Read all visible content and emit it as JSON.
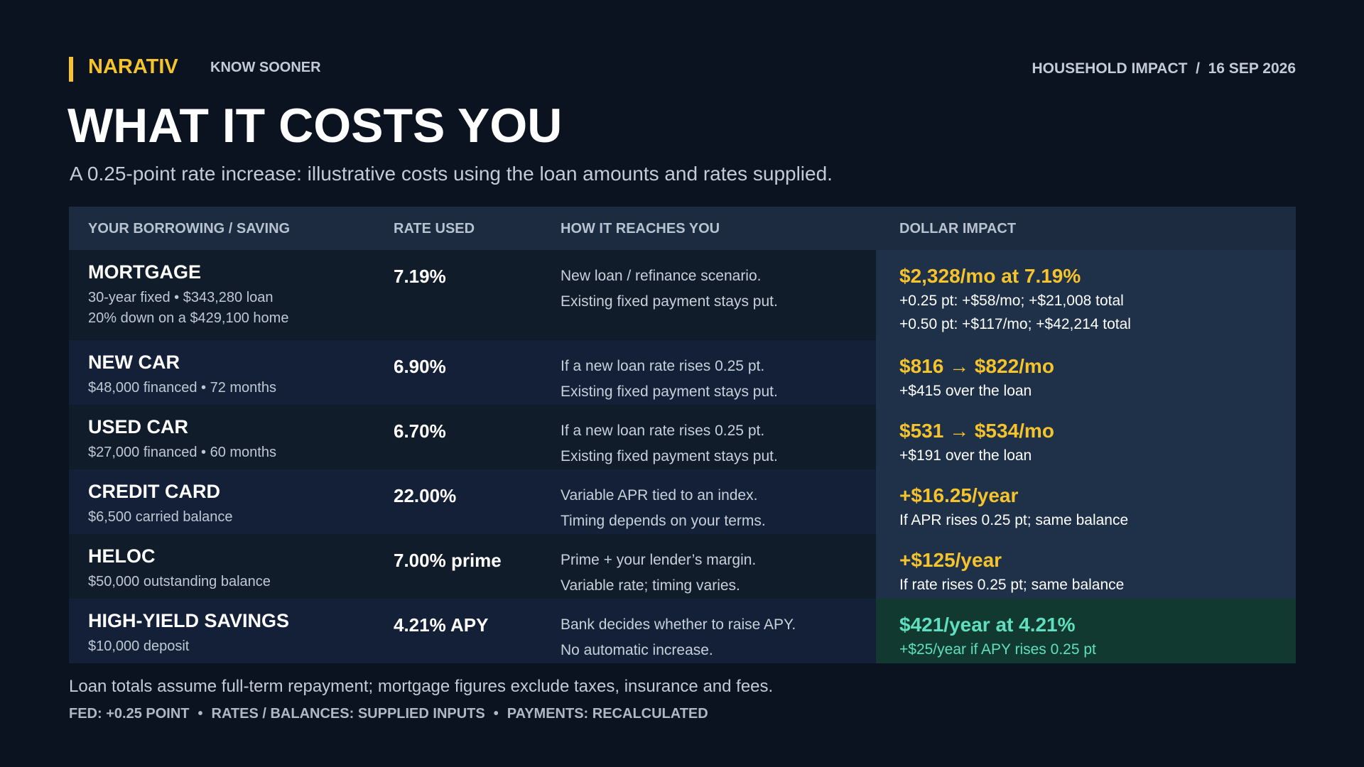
{
  "header": {
    "brand": "NARATIV",
    "tagline": "KNOW SOONER",
    "meta": "HOUSEHOLD IMPACT  /  16 SEP 2026"
  },
  "title": "WHAT IT COSTS YOU",
  "subtitle": "A 0.25-point rate increase: illustrative costs using the loan amounts and rates supplied.",
  "table": {
    "columns": [
      "YOUR BORROWING / SAVING",
      "RATE USED",
      "HOW IT REACHES YOU",
      "DOLLAR IMPACT"
    ],
    "rows": [
      {
        "name": "MORTGAGE",
        "details": [
          "30-year fixed • $343,280 loan",
          "20% down on a $429,100 home"
        ],
        "rate": "7.19%",
        "how": [
          "New loan / refinance scenario.",
          "Existing fixed payment stays put."
        ],
        "impact": "$2,328/mo at 7.19%",
        "impact_details": [
          "+0.25 pt: +$58/mo; +$21,008 total",
          "+0.50 pt: +$117/mo; +$42,214 total"
        ]
      },
      {
        "name": "NEW CAR",
        "details": [
          "$48,000 financed • 72 months"
        ],
        "rate": "6.90%",
        "how": [
          "If a new loan rate rises 0.25 pt.",
          "Existing fixed payment stays put."
        ],
        "impact": "$816 → $822/mo",
        "impact_details": [
          "+$415 over the loan"
        ]
      },
      {
        "name": "USED CAR",
        "details": [
          "$27,000 financed • 60 months"
        ],
        "rate": "6.70%",
        "how": [
          "If a new loan rate rises 0.25 pt.",
          "Existing fixed payment stays put."
        ],
        "impact": "$531 → $534/mo",
        "impact_details": [
          "+$191 over the loan"
        ]
      },
      {
        "name": "CREDIT CARD",
        "details": [
          "$6,500 carried balance"
        ],
        "rate": "22.00%",
        "how": [
          "Variable APR tied to an index.",
          "Timing depends on your terms."
        ],
        "impact": "+$16.25/year",
        "impact_details": [
          "If APR rises 0.25 pt; same balance"
        ]
      },
      {
        "name": "HELOC",
        "details": [
          "$50,000 outstanding balance"
        ],
        "rate": "7.00% prime",
        "how": [
          "Prime + your lender’s margin.",
          "Variable rate; timing varies."
        ],
        "impact": "+$125/year",
        "impact_details": [
          "If rate rises 0.25 pt; same balance"
        ]
      },
      {
        "name": "HIGH-YIELD SAVINGS",
        "details": [
          "$10,000 deposit"
        ],
        "rate": "4.21% APY",
        "how": [
          "Bank decides whether to raise APY.",
          "No automatic increase."
        ],
        "impact": "$421/year at 4.21%",
        "impact_details": [
          "+$25/year if APY rises 0.25 pt"
        ]
      }
    ]
  },
  "footnote": "Loan totals assume full-term repayment; mortgage figures exclude taxes, insurance and fees.",
  "footer": [
    "FED: +0.25 POINT",
    "RATES / BALANCES: SUPPLIED INPUTS",
    "PAYMENTS: RECALCULATED"
  ]
}
